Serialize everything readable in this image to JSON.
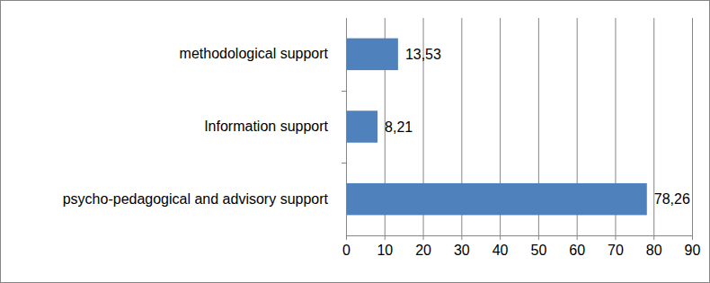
{
  "chart_data": {
    "type": "bar",
    "orientation": "horizontal",
    "categories": [
      "methodological support",
      "Information support",
      "psycho-pedagogical and advisory support"
    ],
    "values": [
      13.53,
      8.21,
      78.26
    ],
    "value_labels": [
      "13,53",
      "8,21",
      "78,26"
    ],
    "data_labels": true,
    "color": "#4f81bd",
    "xlim": [
      0,
      90
    ],
    "xticks": [
      0,
      10,
      20,
      30,
      40,
      50,
      60,
      70,
      80,
      90
    ],
    "grid": true
  }
}
